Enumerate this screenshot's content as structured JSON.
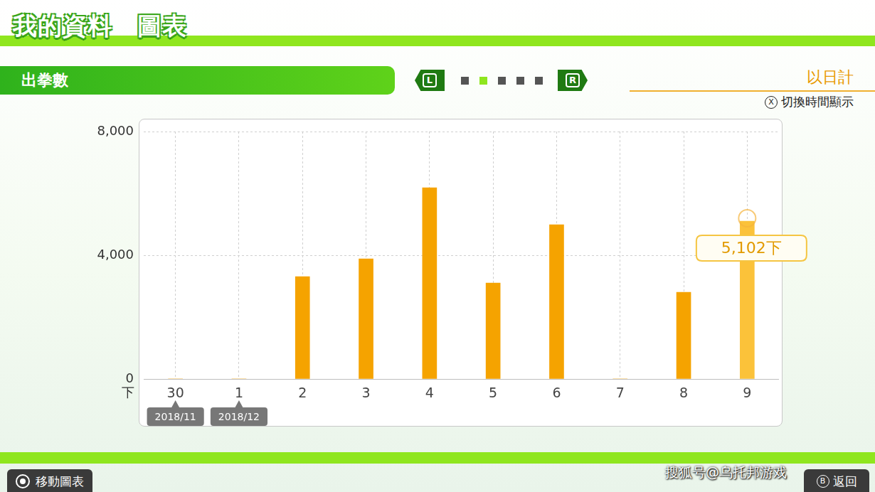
{
  "header": {
    "title": "我的資料　圖表"
  },
  "panel": {
    "left_button": "L",
    "right_button": "R",
    "page_count": 5,
    "current_page": 2
  },
  "period": "以日計",
  "switch_hint": {
    "button": "X",
    "text": "切換時間顯示"
  },
  "footer": {
    "left": {
      "text": "移動圖表"
    },
    "right": {
      "button": "B",
      "text": "返回"
    }
  },
  "watermark": "搜狐号@乌托邦游戏",
  "chart_data": {
    "type": "bar",
    "title": "出拳數",
    "ylabel": "下",
    "categories": [
      "30",
      "1",
      "2",
      "3",
      "4",
      "5",
      "6",
      "7",
      "8",
      "9"
    ],
    "values": [
      0,
      0,
      3310,
      3885,
      6184,
      3103,
      4988,
      0,
      2805,
      5102
    ],
    "colors": [
      "#f5a300",
      "#f5a300",
      "#f5a300",
      "#f5a300",
      "#f5a300",
      "#f5a300",
      "#f5a300",
      "#f5a300",
      "#f5a300",
      "#fbc23a"
    ],
    "ylim": [
      0,
      8000
    ],
    "yticks": [
      0,
      {
        "value": 4000,
        "label": "4,000"
      },
      {
        "value": 8000,
        "label": "8,000"
      }
    ],
    "grid": true,
    "date_markers": [
      {
        "category": "30",
        "label": "2018/11"
      },
      {
        "category": "1",
        "label": "2018/12"
      }
    ],
    "annotations": [
      {
        "category": "9",
        "value": 5102,
        "label": "5,102下"
      }
    ]
  }
}
